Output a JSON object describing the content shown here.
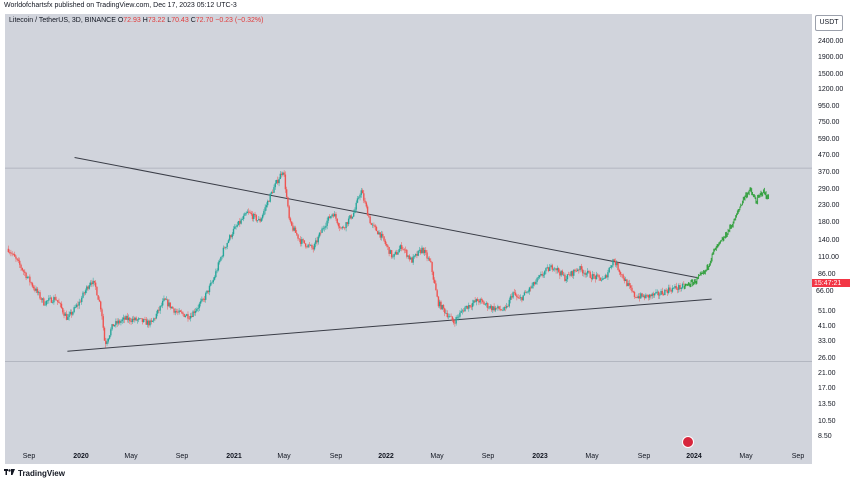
{
  "header": {
    "caption": "Worldofchartsfx published on TradingView.com, Dec 17, 2023 05:12 UTC-3"
  },
  "legend": {
    "symbol": "Litecoin / TetherUS, 3D, BINANCE",
    "open_label": "O",
    "open_value": "72.93",
    "high_label": "H",
    "high_value": "73.22",
    "low_label": "L",
    "low_value": "70.43",
    "close_label": "C",
    "close_value": "72.70",
    "change": "−0.23 (−0.32%)"
  },
  "price_axis": {
    "currency": "USDT",
    "ticks": [
      "2400.00",
      "1900.00",
      "1500.00",
      "1200.00",
      "950.00",
      "750.00",
      "590.00",
      "470.00",
      "370.00",
      "290.00",
      "230.00",
      "180.00",
      "140.00",
      "110.00",
      "86.00",
      "66.00",
      "51.00",
      "41.00",
      "33.00",
      "26.00",
      "21.00",
      "17.00",
      "13.50",
      "10.50",
      "8.50"
    ],
    "current_tag": "15:47:21",
    "next_tag": "66.00"
  },
  "time_axis": {
    "labels": [
      {
        "text": "Sep",
        "year": false
      },
      {
        "text": "2020",
        "year": true
      },
      {
        "text": "May",
        "year": false
      },
      {
        "text": "Sep",
        "year": false
      },
      {
        "text": "2021",
        "year": true
      },
      {
        "text": "May",
        "year": false
      },
      {
        "text": "Sep",
        "year": false
      },
      {
        "text": "2022",
        "year": true
      },
      {
        "text": "May",
        "year": false
      },
      {
        "text": "Sep",
        "year": false
      },
      {
        "text": "2023",
        "year": true
      },
      {
        "text": "May",
        "year": false
      },
      {
        "text": "Sep",
        "year": false
      },
      {
        "text": "2024",
        "year": true
      },
      {
        "text": "May",
        "year": false
      },
      {
        "text": "Sep",
        "year": false
      }
    ]
  },
  "footer": {
    "brand": "TradingView"
  },
  "colors": {
    "up": "#26a69a",
    "down": "#ef5350",
    "projection": "#2e9e3a",
    "trendline": "#3a3d47",
    "background": "#d1d4dc"
  },
  "chart_data": {
    "type": "candlestick",
    "y_scale": "log",
    "ylim": [
      7.5,
      3000
    ],
    "x_axis": "date",
    "xlim": [
      "2019-07-20",
      "2024-10-15"
    ],
    "series": [
      {
        "kind": "price-path",
        "points": [
          [
            "2019-07-28",
            125
          ],
          [
            "2019-08-25",
            98
          ],
          [
            "2019-09-22",
            75
          ],
          [
            "2019-10-20",
            58
          ],
          [
            "2019-11-17",
            62
          ],
          [
            "2019-12-15",
            46
          ],
          [
            "2020-01-12",
            58
          ],
          [
            "2020-02-09",
            80
          ],
          [
            "2020-02-20",
            72
          ],
          [
            "2020-03-05",
            52
          ],
          [
            "2020-03-13",
            32
          ],
          [
            "2020-04-01",
            42
          ],
          [
            "2020-05-01",
            46
          ],
          [
            "2020-06-01",
            45
          ],
          [
            "2020-07-01",
            43
          ],
          [
            "2020-08-01",
            60
          ],
          [
            "2020-09-01",
            50
          ],
          [
            "2020-10-01",
            48
          ],
          [
            "2020-11-01",
            60
          ],
          [
            "2020-11-25",
            80
          ],
          [
            "2020-12-20",
            125
          ],
          [
            "2021-01-10",
            160
          ],
          [
            "2021-02-15",
            210
          ],
          [
            "2021-03-15",
            185
          ],
          [
            "2021-04-10",
            270
          ],
          [
            "2021-05-10",
            390
          ],
          [
            "2021-05-25",
            180
          ],
          [
            "2021-06-20",
            140
          ],
          [
            "2021-07-20",
            125
          ],
          [
            "2021-08-15",
            175
          ],
          [
            "2021-09-05",
            210
          ],
          [
            "2021-09-25",
            165
          ],
          [
            "2021-10-25",
            210
          ],
          [
            "2021-11-10",
            290
          ],
          [
            "2021-12-05",
            175
          ],
          [
            "2021-12-25",
            155
          ],
          [
            "2022-01-25",
            110
          ],
          [
            "2022-02-15",
            130
          ],
          [
            "2022-03-10",
            105
          ],
          [
            "2022-04-05",
            125
          ],
          [
            "2022-04-25",
            100
          ],
          [
            "2022-05-12",
            58
          ],
          [
            "2022-06-18",
            44
          ],
          [
            "2022-07-15",
            54
          ],
          [
            "2022-08-15",
            60
          ],
          [
            "2022-09-15",
            54
          ],
          [
            "2022-10-20",
            52
          ],
          [
            "2022-11-05",
            67
          ],
          [
            "2022-11-20",
            60
          ],
          [
            "2022-12-15",
            70
          ],
          [
            "2023-01-20",
            90
          ],
          [
            "2023-02-10",
            98
          ],
          [
            "2023-03-10",
            82
          ],
          [
            "2023-04-10",
            95
          ],
          [
            "2023-05-10",
            85
          ],
          [
            "2023-06-10",
            80
          ],
          [
            "2023-07-02",
            108
          ],
          [
            "2023-07-20",
            88
          ],
          [
            "2023-08-20",
            64
          ],
          [
            "2023-09-15",
            63
          ],
          [
            "2023-10-15",
            65
          ],
          [
            "2023-11-10",
            70
          ],
          [
            "2023-12-17",
            73
          ]
        ]
      },
      {
        "kind": "projection",
        "points": [
          [
            "2023-12-17",
            73
          ],
          [
            "2024-01-10",
            78
          ],
          [
            "2024-02-05",
            90
          ],
          [
            "2024-02-25",
            120
          ],
          [
            "2024-03-20",
            145
          ],
          [
            "2024-04-15",
            190
          ],
          [
            "2024-05-05",
            255
          ],
          [
            "2024-05-20",
            290
          ],
          [
            "2024-06-05",
            245
          ],
          [
            "2024-06-20",
            285
          ],
          [
            "2024-07-05",
            255
          ]
        ]
      }
    ],
    "trendlines": [
      {
        "name": "",
        "from": [
          "2020-01-01",
          460
        ],
        "to": [
          "2024-01-15",
          83
        ]
      },
      {
        "name": "",
        "from": [
          "2019-12-15",
          29
        ],
        "to": [
          "2024-02-20",
          61
        ]
      }
    ],
    "horizontal_levels": [
      395,
      25
    ]
  }
}
